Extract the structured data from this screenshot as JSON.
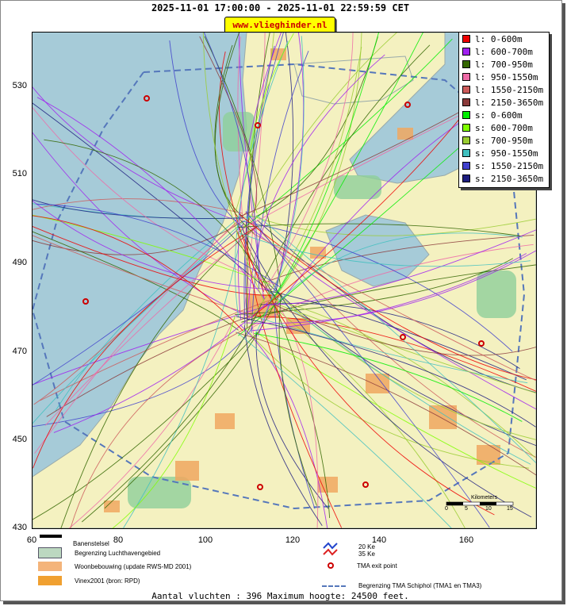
{
  "header": {
    "title": "2025-11-01 17:00:00 - 2025-11-01 22:59:59 CET",
    "site_badge": "www.vlieghinder.nl"
  },
  "legend": [
    {
      "label": "l: 0-600m",
      "color": "#ee0000"
    },
    {
      "label": "l: 600-700m",
      "color": "#a020f0"
    },
    {
      "label": "l: 700-950m",
      "color": "#336600"
    },
    {
      "label": "l: 950-1550m",
      "color": "#ee6aa7"
    },
    {
      "label": "l: 1550-2150m",
      "color": "#cd5c5c"
    },
    {
      "label": "l: 2150-3650m",
      "color": "#8b3a3a"
    },
    {
      "label": "s: 0-600m",
      "color": "#00ee00"
    },
    {
      "label": "s: 600-700m",
      "color": "#7fff00"
    },
    {
      "label": "s: 700-950m",
      "color": "#9acd32"
    },
    {
      "label": "s: 950-1550m",
      "color": "#40c0c0"
    },
    {
      "label": "s: 1550-2150m",
      "color": "#4040cc"
    },
    {
      "label": "s: 2150-3650m",
      "color": "#1e1e80"
    }
  ],
  "axes": {
    "y_ticks": [
      "530",
      "510",
      "490",
      "470",
      "450",
      "430"
    ],
    "x_ticks": [
      "60",
      "80",
      "100",
      "120",
      "140",
      "160"
    ]
  },
  "map": {
    "tma_exit_points": 8,
    "scale_label": "Kilometers",
    "scale_ticks": [
      "0",
      "5",
      "10",
      "15"
    ]
  },
  "bottom_legend": {
    "runway": "Banenstelsel",
    "airport_boundary": "Begrenzing Luchthavengebied",
    "housing": "Woonbebouwing (update RWS-MD 2001)",
    "vinex": "Vinex2001 (bron: RPD)",
    "ke20": "20 Ke",
    "ke35": "35 Ke",
    "tma_exit": "TMA exit point",
    "tma_boundary": "Begrenzing TMA Schiphol  (TMA1 en TMA3)"
  },
  "footer": "Aantal vluchten : 396 Maximum hoogte: 24500 feet.",
  "colors": {
    "sea": "#a6cbd8",
    "land": "#f4f1c0",
    "urban": "#f0a860",
    "green": "#8fd09a"
  }
}
